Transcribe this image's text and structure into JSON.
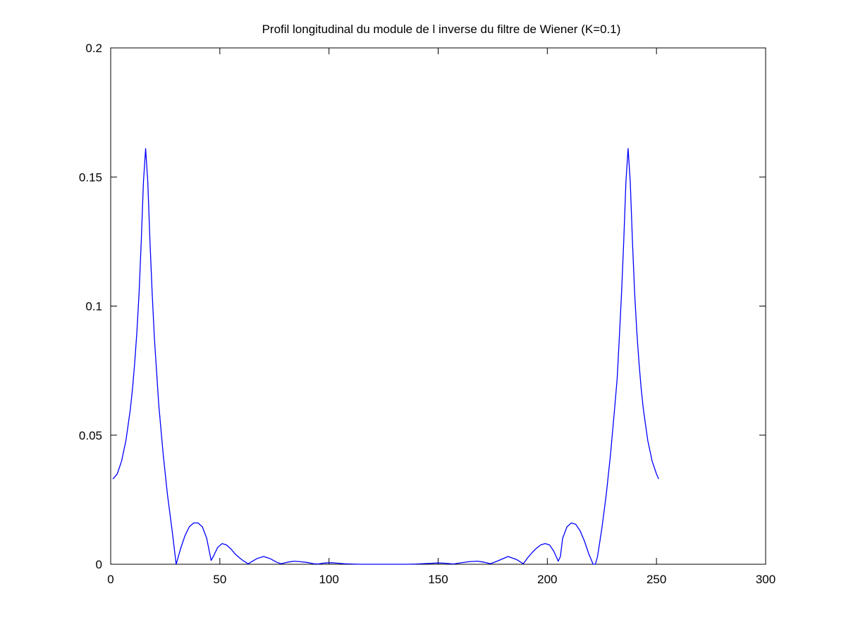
{
  "chart_data": {
    "type": "line",
    "title": "Profil longitudinal du module de l inverse du filtre de Wiener (K=0.1)",
    "xlabel": "",
    "ylabel": "",
    "xlim": [
      0,
      300
    ],
    "ylim": [
      0,
      0.2
    ],
    "x_ticks": [
      0,
      50,
      100,
      150,
      200,
      250,
      300
    ],
    "y_ticks": [
      0,
      0.05,
      0.1,
      0.15,
      0.2
    ],
    "x_tick_labels": [
      "0",
      "50",
      "100",
      "150",
      "200",
      "250",
      "300"
    ],
    "y_tick_labels": [
      "0",
      "0.05",
      "0.1",
      "0.15",
      "0.2"
    ],
    "grid": false,
    "box": true,
    "series": [
      {
        "color": "#0000ff",
        "x": [
          1,
          3,
          5,
          7,
          9,
          10,
          11,
          12,
          13,
          14,
          15,
          16,
          17,
          18,
          19,
          20,
          22,
          24,
          26,
          28,
          30,
          32,
          34,
          36,
          38,
          40,
          42,
          44,
          46,
          47,
          49,
          51,
          53,
          55,
          57,
          59,
          61,
          63,
          65,
          67,
          70,
          73,
          76,
          78,
          81,
          84,
          87,
          90,
          93,
          95,
          98,
          101,
          104,
          107,
          110,
          115,
          120,
          125,
          130,
          135,
          140,
          145,
          150,
          153,
          157,
          160,
          164,
          168,
          171,
          174,
          177,
          182,
          186,
          189,
          191,
          193,
          195,
          197,
          199,
          201,
          203,
          205,
          206,
          207,
          209,
          211,
          213,
          215,
          217,
          219,
          221,
          222,
          223,
          225,
          227,
          229,
          231,
          232,
          233,
          234,
          235,
          236,
          237,
          238,
          239,
          240,
          241,
          242,
          243,
          244,
          246,
          248,
          250,
          251
        ],
        "y": [
          0.033,
          0.035,
          0.04,
          0.048,
          0.06,
          0.068,
          0.078,
          0.09,
          0.105,
          0.125,
          0.148,
          0.161,
          0.148,
          0.125,
          0.105,
          0.088,
          0.062,
          0.043,
          0.027,
          0.014,
          0.0,
          0.006,
          0.011,
          0.0145,
          0.016,
          0.016,
          0.0145,
          0.01,
          0.0015,
          0.003,
          0.0065,
          0.008,
          0.0075,
          0.006,
          0.004,
          0.0025,
          0.0012,
          0.0002,
          0.0012,
          0.0022,
          0.003,
          0.0022,
          0.0008,
          0.0002,
          0.0008,
          0.0012,
          0.001,
          0.0007,
          0.0002,
          0.0001,
          0.0005,
          0.0006,
          0.0004,
          0.0002,
          0.0001,
          0.0,
          0.0,
          0.0,
          0.0,
          0.0,
          0.0001,
          0.0003,
          0.0005,
          0.0004,
          0.0001,
          0.0005,
          0.001,
          0.0012,
          0.0008,
          0.0002,
          0.0012,
          0.003,
          0.0018,
          0.0002,
          0.0025,
          0.0045,
          0.0062,
          0.0075,
          0.008,
          0.0075,
          0.005,
          0.0012,
          0.003,
          0.01,
          0.0145,
          0.016,
          0.0155,
          0.013,
          0.009,
          0.004,
          0.0,
          0.0,
          0.003,
          0.014,
          0.027,
          0.043,
          0.062,
          0.072,
          0.088,
          0.105,
          0.125,
          0.148,
          0.161,
          0.148,
          0.125,
          0.105,
          0.09,
          0.078,
          0.068,
          0.06,
          0.048,
          0.04,
          0.035,
          0.033
        ]
      }
    ]
  }
}
